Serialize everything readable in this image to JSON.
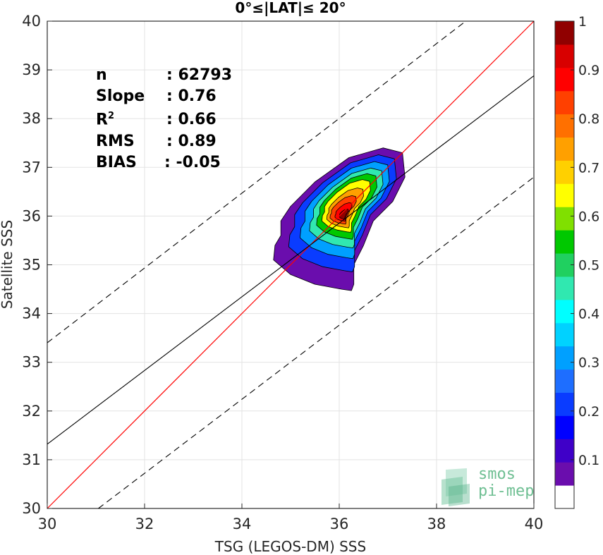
{
  "chart_data": {
    "type": "heatmap",
    "title": "0°≤|LAT|≤ 20°",
    "xlabel": "TSG (LEGOS-DM) SSS",
    "ylabel": "Satellite SSS",
    "xlim": [
      30,
      40
    ],
    "ylim": [
      30,
      40
    ],
    "xticks": [
      "30",
      "32",
      "34",
      "36",
      "38",
      "40"
    ],
    "yticks": [
      "30",
      "31",
      "32",
      "33",
      "34",
      "35",
      "36",
      "37",
      "38",
      "39",
      "40"
    ],
    "grid": true,
    "reference_lines": {
      "one_to_one": {
        "color": "#ff0000",
        "slope": 1,
        "intercept": 0
      },
      "regression": {
        "color": "#000000",
        "x": [
          30,
          40
        ],
        "y": [
          31.32,
          38.88
        ]
      },
      "upper_bound": {
        "style": "dashed",
        "x": [
          30,
          38.6
        ],
        "y": [
          33.4,
          40.0
        ]
      },
      "lower_bound": {
        "style": "dashed",
        "x": [
          31.05,
          40
        ],
        "y": [
          30.0,
          36.8
        ]
      }
    },
    "density_peak": {
      "x": 36.1,
      "y": 36.05,
      "value": 1.0
    },
    "colorbar": {
      "range": [
        0,
        1
      ],
      "ticks": [
        "0.1",
        "0.2",
        "0.3",
        "0.4",
        "0.5",
        "0.6",
        "0.7",
        "0.8",
        "0.9",
        "1"
      ],
      "colors": [
        "#ffffff",
        "#6a0dad",
        "#3f00c8",
        "#0000ff",
        "#0a3cff",
        "#1e6eff",
        "#00a0ff",
        "#00d2ff",
        "#00ffff",
        "#30e8b0",
        "#20d060",
        "#00c800",
        "#80e000",
        "#ffff00",
        "#ffd000",
        "#ffa000",
        "#ff7000",
        "#ff4000",
        "#ff0000",
        "#d80000",
        "#900000"
      ]
    },
    "contour_levels": [
      0.05,
      0.15,
      0.25,
      0.35,
      0.45,
      0.55,
      0.65,
      0.75,
      0.85,
      0.95
    ]
  },
  "stats": [
    {
      "label": "n",
      "value": ": 62793"
    },
    {
      "label": "Slope",
      "value": ": 0.76"
    },
    {
      "label": "R",
      "sup": "2",
      "value": ": 0.66"
    },
    {
      "label": "RMS",
      "value": ": 0.89"
    },
    {
      "label": "BIAS",
      "value": ": -0.05"
    }
  ],
  "logo": {
    "line1": "smos",
    "line2": "pi-mep"
  }
}
